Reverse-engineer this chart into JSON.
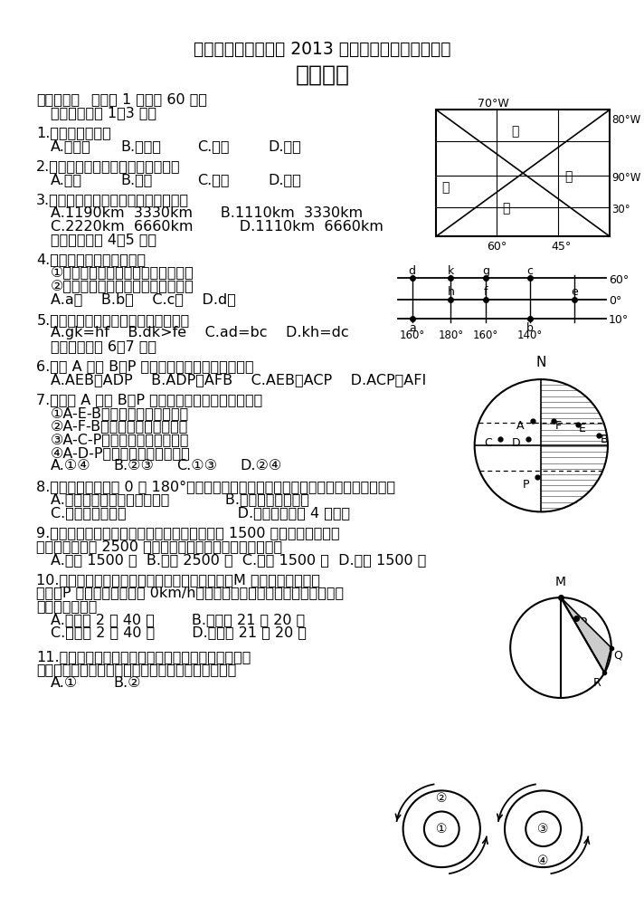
{
  "bg_color": "#ffffff",
  "title1": "绵阳中学实验学校高 2013 级第三学期第一学月考试",
  "title2": "地理试题",
  "section1_bold": "一、选择题",
  "section1_rest": "（每题 1 分，共 60 分）",
  "section1_sub": "    读右图，回答 1～3 题。",
  "q1": "1.如图所示乙位于",
  "q1_A": "A.南半球",
  "q1_B": "B.北半球",
  "q1_C": "C.热带",
  "q1_D": "D.寒带",
  "q2": "2.甲在丁的什么方向，判断正确的是",
  "q2_A": "A.西北",
  "q2_B": "B.东南",
  "q2_C": "C.西南",
  "q2_D": "D.东北",
  "q3": "3.丙丁两地和乙丁两地的实际距离约为",
  "q3_opt1": "    A.1190km  3330km      B.1110km  3330km",
  "q3_opt2": "    C.2220km  6660km          D.1110km  6660km",
  "q3_sub": "    读右图，回答 4～5 题。",
  "q4": "4.图中符合下列条件的点为",
  "q4_c1": "    ①该点以东为西半球，以西为东半球",
  "q4_c2": "    ②该点以北为高纬度，以南为中纬度",
  "q4_opts": "    A.a点    B.b点    C.c点    D.d点",
  "q5": "5.图中有关经纬线长度的叙述正确的是",
  "q5_opts": "    A.gk=hf    B.dk>fe    C.ad=bc    D.kh=dc",
  "q5_sub": "    读右图，回答 6～7 题。",
  "q6": "6.图示 A 点到 B、P 两点的实际距离最短的分别是",
  "q6_opts": "    A.AEB、ADP    B.ADP、AFB    C.AEB、ACP    D.ACP、AFI",
  "q7": "7.关于由 A 点到 B、P 两点的方向的表述，正确的是",
  "q7_c1": "    ①A-E-B，先向东北，再向东南",
  "q7_c2": "    ②A-F-B，先向东南，再向东北",
  "q7_c3": "    ③A-C-P，先向西南，再向东南",
  "q7_c4": "    ④A-D-P，先向东南，再向西南",
  "q7_A": "A.①④",
  "q7_B": "B.②③",
  "q7_C": "C.①③",
  "q7_D": "D.②④",
  "q8": "8.甲、乙两人分别沿 0 和 180°经线同时从北极出发等速向南行进，可能产生的现象是",
  "q8_opt1": "    A.他们之间始终保持相等距离            B.他们会在南极相遇",
  "q8_opt2": "    C.他们会回到北极                        D.他们始终相距 4 万千米",
  "q9": "9.一批考察队员在北极点考察结束后，又往正南 1500 米的甲地考察，然",
  "q9_cont": "后回到位于正南 2500 米的乙地宿营；则乙地应在北极点的",
  "q9_opts": "    A.西南 1500 米  B.正南 2500 米  C.东南 1500 米  D.正南 1500 米",
  "q10": "10.右图中，大圆为晨昏线，图示区域为夜半球，M 点在东西半球分界",
  "q10_cont": "线上，P 点的自转线速度为 0km/h，图中阴影与非阴影部分日期不同，该",
  "q10_cont2": "图中北京时间为",
  "q10_opt1": "    A.旧一天 2 时 40 分        B.旧一天 21 时 20 分",
  "q10_opt2": "    C.新一天 2 时 40 分        D.新一天 21 时 20 分",
  "q11": "11.当太阳在地平线以上时，有人发现太阳总在北方，",
  "q11_cont": "而且自己的影子也在北方，这个人的位置在右图中的",
  "q11_A": "A.①",
  "q11_B": "B.②"
}
